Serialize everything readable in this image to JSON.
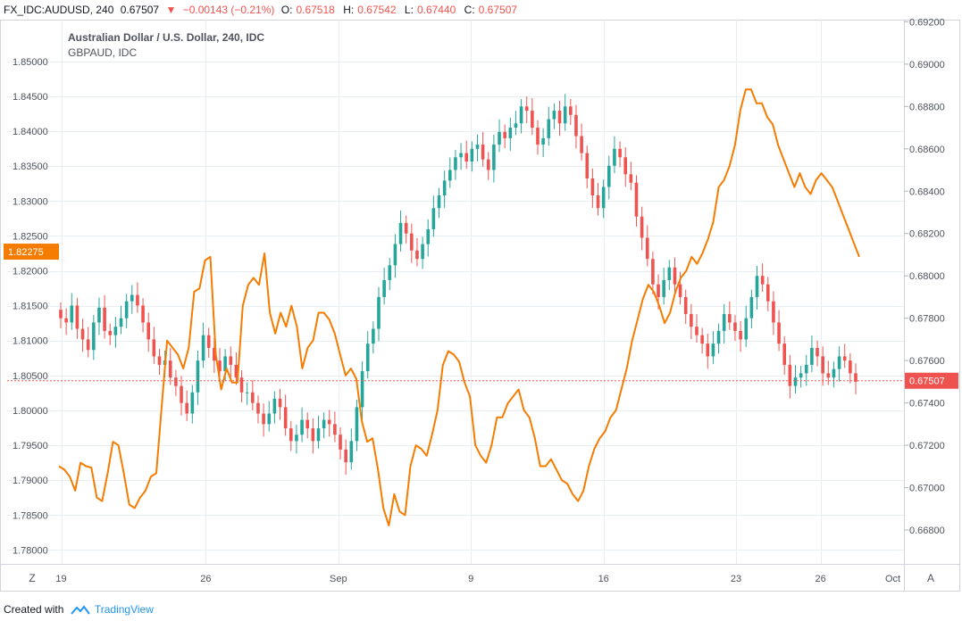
{
  "header": {
    "symbol": "FX_IDC:AUDUSD, 240",
    "last": "0.67507",
    "change": "−0.00143 (−0.21%)",
    "open_label": "O:",
    "open": "0.67518",
    "high_label": "H:",
    "high": "0.67542",
    "low_label": "L:",
    "low": "0.67440",
    "close_label": "C:",
    "close": "0.67507"
  },
  "footer": {
    "created_with": "Created with",
    "brand": "TradingView"
  },
  "chart_data": {
    "type": "line",
    "title": "Australian Dollar / U.S. Dollar, 240, IDC",
    "subtitle": "GBPAUD, IDC",
    "x_tick_labels": [
      "19",
      "26",
      "Sep",
      "9",
      "16",
      "23",
      "26",
      "Oct"
    ],
    "left_axis": {
      "ylim": [
        1.778,
        1.856
      ],
      "ticks": [
        "1.85000",
        "1.84500",
        "1.84000",
        "1.83500",
        "1.83000",
        "1.82500",
        "1.82000",
        "1.81500",
        "1.81000",
        "1.80500",
        "1.80000",
        "1.79500",
        "1.79000",
        "1.78500",
        "1.78000"
      ],
      "last_value_label": "1.82275"
    },
    "right_axis": {
      "ylim": [
        0.6664,
        0.6921
      ],
      "ticks": [
        "0.69200",
        "0.69000",
        "0.68800",
        "0.68600",
        "0.68400",
        "0.68200",
        "0.68000",
        "0.67800",
        "0.67600",
        "0.67400",
        "0.67200",
        "0.67000",
        "0.66800"
      ],
      "last_value_label": "0.67507",
      "last_value": 0.67507
    },
    "grid": true,
    "axis_buttons": [
      "Z",
      "A"
    ],
    "colors": {
      "up": "#26a69a",
      "down": "#ef5350",
      "line": "#f57c00",
      "grid": "#e9eef3",
      "axis_text": "#50535e",
      "last_left_bg": "#f57c00",
      "last_right_bg": "#ef5350",
      "hline": "#ef5350"
    },
    "series": [
      {
        "name": "Australian Dollar / U.S. Dollar",
        "kind": "candlestick",
        "axis": "right",
        "close": [
          0.678,
          0.6778,
          0.6786,
          0.6775,
          0.677,
          0.6765,
          0.6778,
          0.6785,
          0.6774,
          0.6772,
          0.6776,
          0.678,
          0.6788,
          0.6791,
          0.6786,
          0.6778,
          0.677,
          0.6762,
          0.6758,
          0.676,
          0.6752,
          0.6748,
          0.674,
          0.6735,
          0.6745,
          0.676,
          0.6772,
          0.6766,
          0.676,
          0.6755,
          0.6762,
          0.6758,
          0.6752,
          0.6745,
          0.6745,
          0.674,
          0.6735,
          0.673,
          0.6735,
          0.6742,
          0.6738,
          0.6728,
          0.6722,
          0.6725,
          0.6732,
          0.6728,
          0.6722,
          0.6728,
          0.6732,
          0.673,
          0.6725,
          0.6718,
          0.6712,
          0.6722,
          0.6738,
          0.6755,
          0.6768,
          0.6775,
          0.679,
          0.6798,
          0.6805,
          0.6815,
          0.6825,
          0.682,
          0.6812,
          0.6808,
          0.6815,
          0.6822,
          0.6832,
          0.6838,
          0.6845,
          0.685,
          0.6856,
          0.6858,
          0.6854,
          0.686,
          0.6862,
          0.6855,
          0.685,
          0.6862,
          0.6868,
          0.6865,
          0.687,
          0.6872,
          0.688,
          0.6878,
          0.687,
          0.6862,
          0.6865,
          0.6874,
          0.6878,
          0.6872,
          0.688,
          0.6876,
          0.6866,
          0.6858,
          0.6846,
          0.6838,
          0.6832,
          0.6842,
          0.6852,
          0.686,
          0.6856,
          0.6848,
          0.6844,
          0.6828,
          0.6818,
          0.6808,
          0.6796,
          0.679,
          0.6798,
          0.6804,
          0.6796,
          0.679,
          0.6782,
          0.6776,
          0.6772,
          0.6768,
          0.6762,
          0.6768,
          0.6774,
          0.6782,
          0.6778,
          0.6774,
          0.677,
          0.678,
          0.679,
          0.68,
          0.6796,
          0.6788,
          0.6778,
          0.6768,
          0.6758,
          0.6748,
          0.6752,
          0.6754,
          0.6758,
          0.6766,
          0.6762,
          0.6754,
          0.6752,
          0.6756,
          0.6762,
          0.676,
          0.6754,
          0.675
        ]
      },
      {
        "name": "GBPAUD, IDC",
        "kind": "line",
        "axis": "left",
        "values": [
          1.792,
          1.7915,
          1.7905,
          1.7885,
          1.7925,
          1.792,
          1.7918,
          1.7875,
          1.787,
          1.791,
          1.7955,
          1.795,
          1.791,
          1.7865,
          1.786,
          1.7875,
          1.7885,
          1.7905,
          1.791,
          1.8005,
          1.81,
          1.809,
          1.808,
          1.806,
          1.809,
          1.817,
          1.8175,
          1.8215,
          1.822,
          1.808,
          1.803,
          1.806,
          1.804,
          1.804,
          1.815,
          1.818,
          1.819,
          1.818,
          1.8225,
          1.814,
          1.811,
          1.814,
          1.812,
          1.815,
          1.812,
          1.806,
          1.809,
          1.81,
          1.814,
          1.814,
          1.813,
          1.811,
          1.808,
          1.805,
          1.806,
          1.8045,
          1.7985,
          1.7955,
          1.796,
          1.7915,
          1.786,
          1.7835,
          1.788,
          1.7855,
          1.785,
          1.792,
          1.795,
          1.7945,
          1.7935,
          1.7965,
          1.8,
          1.8065,
          1.8085,
          1.808,
          1.807,
          1.804,
          1.802,
          1.795,
          1.7935,
          1.7925,
          1.795,
          1.799,
          1.799,
          1.801,
          1.802,
          1.803,
          1.8,
          1.799,
          1.796,
          1.792,
          1.792,
          1.793,
          1.7915,
          1.79,
          1.7895,
          1.788,
          1.787,
          1.7885,
          1.792,
          1.7945,
          1.796,
          1.797,
          1.799,
          1.8,
          1.803,
          1.806,
          1.81,
          1.813,
          1.816,
          1.818,
          1.817,
          1.815,
          1.8125,
          1.814,
          1.817,
          1.819,
          1.82,
          1.822,
          1.821,
          1.8225,
          1.8245,
          1.827,
          1.832,
          1.833,
          1.835,
          1.838,
          1.843,
          1.846,
          1.846,
          1.844,
          1.844,
          1.842,
          1.841,
          1.838,
          1.836,
          1.834,
          1.832,
          1.834,
          1.832,
          1.831,
          1.833,
          1.834,
          1.833,
          1.832,
          1.83,
          1.828,
          1.826,
          1.824,
          1.822
        ]
      }
    ]
  }
}
